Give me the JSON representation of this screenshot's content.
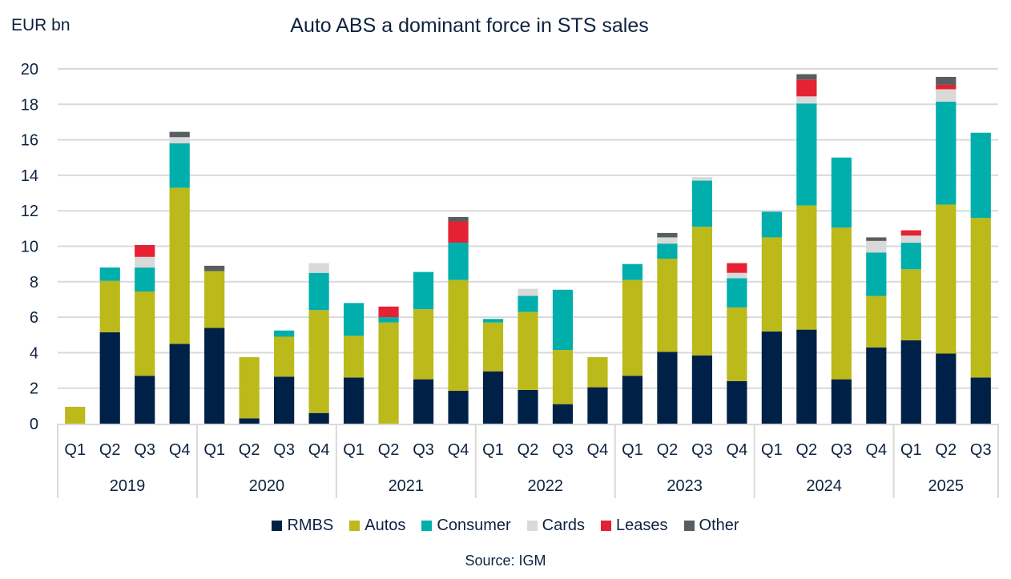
{
  "chart_data": {
    "type": "bar",
    "stacked": true,
    "title": "Auto ABS a dominant force in STS sales",
    "ylabel": "EUR bn",
    "xlabel": "",
    "ylim": [
      0,
      20
    ],
    "yticks": [
      0,
      2,
      4,
      6,
      8,
      10,
      12,
      14,
      16,
      18,
      20
    ],
    "grid": true,
    "legend_position": "bottom",
    "source": "Source: IGM",
    "years": [
      {
        "label": "2019",
        "quarters": 4
      },
      {
        "label": "2020",
        "quarters": 4
      },
      {
        "label": "2021",
        "quarters": 4
      },
      {
        "label": "2022",
        "quarters": 4
      },
      {
        "label": "2023",
        "quarters": 4
      },
      {
        "label": "2024",
        "quarters": 4
      },
      {
        "label": "2025",
        "quarters": 3
      }
    ],
    "categories": [
      "Q1",
      "Q2",
      "Q3",
      "Q4",
      "Q1",
      "Q2",
      "Q3",
      "Q4",
      "Q1",
      "Q2",
      "Q3",
      "Q4",
      "Q1",
      "Q2",
      "Q3",
      "Q4",
      "Q1",
      "Q2",
      "Q3",
      "Q4",
      "Q1",
      "Q2",
      "Q3",
      "Q4",
      "Q1",
      "Q2",
      "Q3"
    ],
    "series": [
      {
        "name": "RMBS",
        "color": "#002147",
        "values": [
          0,
          5.15,
          2.7,
          4.5,
          5.4,
          0.3,
          2.65,
          0.6,
          2.6,
          0,
          2.5,
          1.85,
          2.95,
          1.9,
          1.1,
          2.05,
          2.7,
          4.05,
          3.85,
          2.4,
          5.2,
          5.3,
          2.5,
          4.3,
          4.7,
          3.95,
          2.6
        ]
      },
      {
        "name": "Autos",
        "color": "#bcb91a",
        "values": [
          0.95,
          2.9,
          4.75,
          8.8,
          3.2,
          3.45,
          2.25,
          5.8,
          2.35,
          5.7,
          3.95,
          6.25,
          2.75,
          4.4,
          3.05,
          1.7,
          5.4,
          5.25,
          7.25,
          4.15,
          5.3,
          7.0,
          8.55,
          2.9,
          4.0,
          8.4,
          9.0
        ]
      },
      {
        "name": "Consumer",
        "color": "#00aeac",
        "values": [
          0,
          0.75,
          1.35,
          2.5,
          0,
          0,
          0.35,
          2.1,
          1.85,
          0.3,
          2.1,
          2.1,
          0.2,
          0.9,
          3.4,
          0,
          0.9,
          0.85,
          2.6,
          1.65,
          1.45,
          5.75,
          3.95,
          2.45,
          1.5,
          5.8,
          4.8
        ]
      },
      {
        "name": "Cards",
        "color": "#d9d9d9",
        "values": [
          0,
          0,
          0.6,
          0.35,
          0,
          0,
          0,
          0.55,
          0,
          0,
          0,
          0,
          0,
          0.4,
          0,
          0,
          0,
          0.35,
          0.2,
          0.3,
          0,
          0.4,
          0,
          0.65,
          0.4,
          0.7,
          0
        ]
      },
      {
        "name": "Leases",
        "color": "#e42233",
        "values": [
          0,
          0,
          0.67,
          0,
          0,
          0,
          0,
          0,
          0,
          0.6,
          0,
          1.2,
          0,
          0,
          0,
          0,
          0,
          0,
          0,
          0.55,
          0,
          0.95,
          0,
          0,
          0.3,
          0.25,
          0
        ]
      },
      {
        "name": "Other",
        "color": "#575e61",
        "values": [
          0,
          0,
          0,
          0.3,
          0.3,
          0,
          0,
          0,
          0,
          0,
          0,
          0.25,
          0,
          0,
          0,
          0,
          0,
          0.25,
          0,
          0,
          0,
          0.3,
          0,
          0.2,
          0,
          0.45,
          0
        ]
      }
    ]
  }
}
